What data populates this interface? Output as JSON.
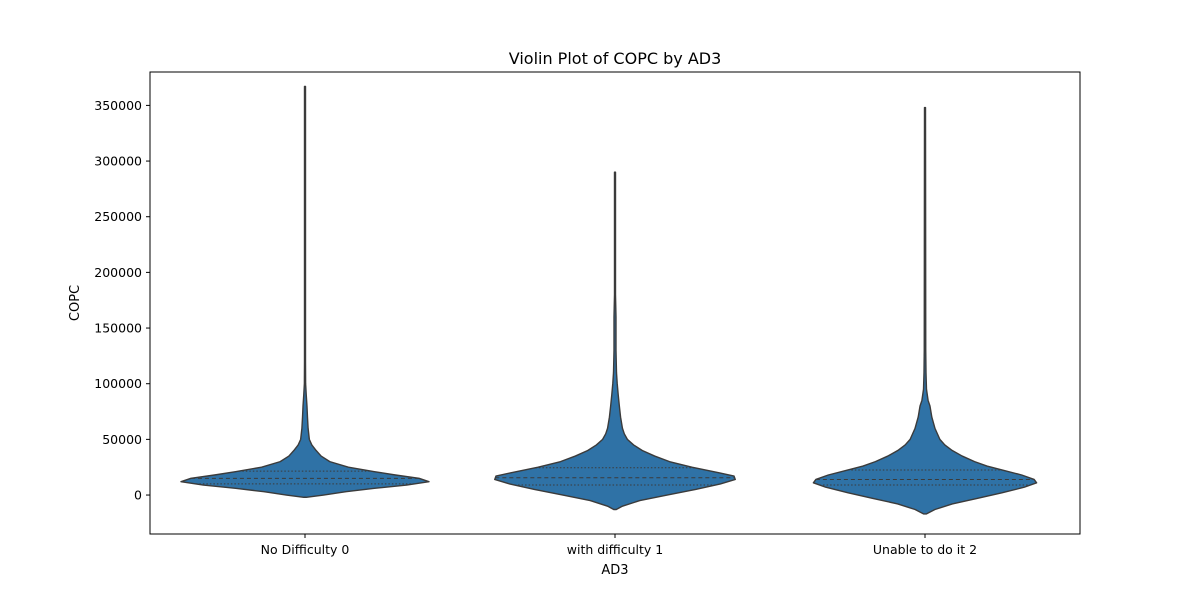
{
  "chart_data": {
    "type": "violin",
    "title": "Violin Plot of COPC by AD3",
    "xlabel": "AD3",
    "ylabel": "COPC",
    "categories": [
      "No Difficulty 0",
      "with difficulty 1",
      "Unable to do it 2"
    ],
    "ylim": [
      -35000,
      380000
    ],
    "yticks": [
      0,
      50000,
      100000,
      150000,
      200000,
      250000,
      300000,
      350000
    ],
    "ytick_labels": [
      "0",
      "50000",
      "100000",
      "150000",
      "200000",
      "250000",
      "300000",
      "350000"
    ],
    "fill_color": "#2f72a6",
    "edge_color": "#3b3b3b",
    "grid": false,
    "violins": [
      {
        "category": "No Difficulty 0",
        "min": -2000,
        "max": 367000,
        "q1": 10000,
        "median": 15000,
        "q3": 21500,
        "profile": [
          [
            -2000,
            0.01
          ],
          [
            0,
            0.15
          ],
          [
            3000,
            0.33
          ],
          [
            6000,
            0.56
          ],
          [
            9000,
            0.82
          ],
          [
            12000,
            1.0
          ],
          [
            15000,
            0.92
          ],
          [
            18000,
            0.73
          ],
          [
            21000,
            0.56
          ],
          [
            25000,
            0.35
          ],
          [
            30000,
            0.2
          ],
          [
            35000,
            0.13
          ],
          [
            40000,
            0.09
          ],
          [
            45000,
            0.055
          ],
          [
            50000,
            0.035
          ],
          [
            60000,
            0.025
          ],
          [
            70000,
            0.02
          ],
          [
            80000,
            0.016
          ],
          [
            90000,
            0.01
          ],
          [
            100000,
            0.005
          ],
          [
            120000,
            0.004
          ],
          [
            367000,
            0.004
          ]
        ]
      },
      {
        "category": "with difficulty 1",
        "min": -13000,
        "max": 290000,
        "q1": 9000,
        "median": 15500,
        "q3": 24500,
        "profile": [
          [
            -13000,
            0.01
          ],
          [
            -10000,
            0.06
          ],
          [
            -5000,
            0.2
          ],
          [
            0,
            0.42
          ],
          [
            5000,
            0.65
          ],
          [
            10000,
            0.85
          ],
          [
            14000,
            0.97
          ],
          [
            17000,
            0.96
          ],
          [
            20000,
            0.84
          ],
          [
            25000,
            0.62
          ],
          [
            30000,
            0.44
          ],
          [
            35000,
            0.32
          ],
          [
            40000,
            0.22
          ],
          [
            45000,
            0.15
          ],
          [
            50000,
            0.1
          ],
          [
            55000,
            0.075
          ],
          [
            60000,
            0.06
          ],
          [
            70000,
            0.045
          ],
          [
            80000,
            0.035
          ],
          [
            90000,
            0.026
          ],
          [
            100000,
            0.018
          ],
          [
            110000,
            0.012
          ],
          [
            130000,
            0.008
          ],
          [
            160000,
            0.008
          ],
          [
            180000,
            0.004
          ],
          [
            290000,
            0.004
          ]
        ]
      },
      {
        "category": "Unable to do it 2",
        "min": -17000,
        "max": 348000,
        "q1": 9000,
        "median": 14000,
        "q3": 22500,
        "profile": [
          [
            -17000,
            0.01
          ],
          [
            -13000,
            0.08
          ],
          [
            -8000,
            0.22
          ],
          [
            -3000,
            0.42
          ],
          [
            2000,
            0.62
          ],
          [
            7000,
            0.8
          ],
          [
            11000,
            0.9
          ],
          [
            14000,
            0.88
          ],
          [
            18000,
            0.78
          ],
          [
            22000,
            0.64
          ],
          [
            26000,
            0.5
          ],
          [
            30000,
            0.4
          ],
          [
            35000,
            0.3
          ],
          [
            40000,
            0.22
          ],
          [
            45000,
            0.16
          ],
          [
            50000,
            0.12
          ],
          [
            60000,
            0.08
          ],
          [
            70000,
            0.055
          ],
          [
            80000,
            0.04
          ],
          [
            85000,
            0.025
          ],
          [
            95000,
            0.012
          ],
          [
            110000,
            0.008
          ],
          [
            130000,
            0.006
          ],
          [
            348000,
            0.004
          ]
        ]
      }
    ]
  }
}
